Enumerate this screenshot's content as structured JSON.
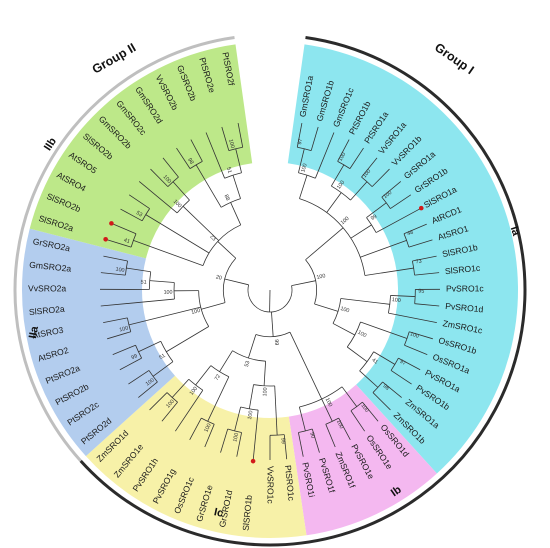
{
  "figure": {
    "group_labels": [
      "Group I",
      "Group II"
    ],
    "subgroup_labels": [
      "Ia",
      "Ib",
      "Ic",
      "IIa",
      "IIb"
    ]
  },
  "colors": {
    "Ia": "#8de6ef",
    "Ib": "#f4b8f0",
    "Ic": "#f7f1a8",
    "IIa": "#b3cdee",
    "IIb": "#bde889",
    "group_ring": "#bfbfbf",
    "group_ring_dark": "#2b2b2b",
    "branch": "#333333",
    "marker": "#d11a1a"
  },
  "leaves": [
    {
      "name": "GmSRO1a",
      "clade": "Ia"
    },
    {
      "name": "GmSRO1b",
      "clade": "Ia"
    },
    {
      "name": "GmSRO1c",
      "clade": "Ia"
    },
    {
      "name": "PtSRO1b",
      "clade": "Ia"
    },
    {
      "name": "PtSRO1a",
      "clade": "Ia"
    },
    {
      "name": "VvSRO1a",
      "clade": "Ia"
    },
    {
      "name": "VvSRO1b",
      "clade": "Ia"
    },
    {
      "name": "GrSRO1a",
      "clade": "Ia"
    },
    {
      "name": "GrSRO1b",
      "clade": "Ia"
    },
    {
      "name": "SlSRO1a",
      "clade": "Ia",
      "marked": true
    },
    {
      "name": "AtRCD1",
      "clade": "Ia"
    },
    {
      "name": "AtSRO1",
      "clade": "Ia"
    },
    {
      "name": "SlSRO1b",
      "clade": "Ia"
    },
    {
      "name": "SlSRO1c",
      "clade": "Ia"
    },
    {
      "name": "PvSRO1c",
      "clade": "Ia"
    },
    {
      "name": "PvSRO1d",
      "clade": "Ia"
    },
    {
      "name": "ZmSRO1c",
      "clade": "Ia"
    },
    {
      "name": "OsSRO1b",
      "clade": "Ia"
    },
    {
      "name": "OsSRO1a",
      "clade": "Ia"
    },
    {
      "name": "PvSRO1a",
      "clade": "Ia"
    },
    {
      "name": "PvSRO1b",
      "clade": "Ia"
    },
    {
      "name": "ZmSRO1a",
      "clade": "Ia"
    },
    {
      "name": "ZmSRO1b",
      "clade": "Ia"
    },
    {
      "name": "OsSRO1d",
      "clade": "Ib"
    },
    {
      "name": "OsSRO1e",
      "clade": "Ib"
    },
    {
      "name": "PvSRO1e",
      "clade": "Ib"
    },
    {
      "name": "ZmSRO1f",
      "clade": "Ib"
    },
    {
      "name": "PvSRO1f",
      "clade": "Ib"
    },
    {
      "name": "PvSRO1i",
      "clade": "Ib"
    },
    {
      "name": "PtSRO1c",
      "clade": "Ic"
    },
    {
      "name": "VvSRO1c",
      "clade": "Ic"
    },
    {
      "name": "SlSRO1b",
      "clade": "Ic",
      "marked": true
    },
    {
      "name": "GrSRO1d",
      "clade": "Ic"
    },
    {
      "name": "GrSRO1e",
      "clade": "Ic"
    },
    {
      "name": "OsSRO1c",
      "clade": "Ic"
    },
    {
      "name": "PvSRO1g",
      "clade": "Ic"
    },
    {
      "name": "PvSRO1h",
      "clade": "Ic"
    },
    {
      "name": "ZmSRO1e",
      "clade": "Ic"
    },
    {
      "name": "ZmSRO1d",
      "clade": "Ic"
    },
    {
      "name": "PtSRO2d",
      "clade": "IIa"
    },
    {
      "name": "PtSRO2c",
      "clade": "IIa"
    },
    {
      "name": "PtSRO2b",
      "clade": "IIa"
    },
    {
      "name": "PtSRO2a",
      "clade": "IIa"
    },
    {
      "name": "AtSRO2",
      "clade": "IIa"
    },
    {
      "name": "AtSRO3",
      "clade": "IIa"
    },
    {
      "name": "SlSRO2a",
      "clade": "IIa"
    },
    {
      "name": "VvSRO2a",
      "clade": "IIa"
    },
    {
      "name": "GmSRO2a",
      "clade": "IIa"
    },
    {
      "name": "GrSRO2a",
      "clade": "IIa"
    },
    {
      "name": "SlSRO2a",
      "clade": "IIb",
      "marked": true
    },
    {
      "name": "SlSRO2b",
      "clade": "IIb",
      "marked": true
    },
    {
      "name": "AtSRO4",
      "clade": "IIb"
    },
    {
      "name": "AtSRO5",
      "clade": "IIb"
    },
    {
      "name": "SlSRO2b",
      "clade": "IIb"
    },
    {
      "name": "GmSRO2b",
      "clade": "IIb"
    },
    {
      "name": "GmSRO2c",
      "clade": "IIb"
    },
    {
      "name": "GmSRO2d",
      "clade": "IIb"
    },
    {
      "name": "VvSRO2b",
      "clade": "IIb"
    },
    {
      "name": "GrSRO2b",
      "clade": "IIb"
    },
    {
      "name": "PtSRO2e",
      "clade": "IIb"
    },
    {
      "name": "PtSRO2f",
      "clade": "IIb"
    }
  ],
  "bootstrap": [
    "97",
    "100",
    "100",
    "100",
    "100",
    "100",
    "99",
    "48",
    "73",
    "100",
    "95",
    "100",
    "100",
    "97",
    "98",
    "41",
    "100",
    "100",
    "100",
    "100",
    "100",
    "90",
    "100",
    "99",
    "100",
    "100",
    "100",
    "100",
    "100",
    "100",
    "72",
    "53",
    "99",
    "100",
    "99",
    "51",
    "100",
    "100",
    "51",
    "100",
    "100",
    "41",
    "53",
    "100",
    "100",
    "98",
    "100",
    "51",
    "88",
    "23",
    "20",
    "100",
    "100",
    "85",
    "65",
    "100",
    "77",
    "67",
    "100",
    "100",
    "54",
    "82",
    "76",
    "100",
    "58"
  ]
}
